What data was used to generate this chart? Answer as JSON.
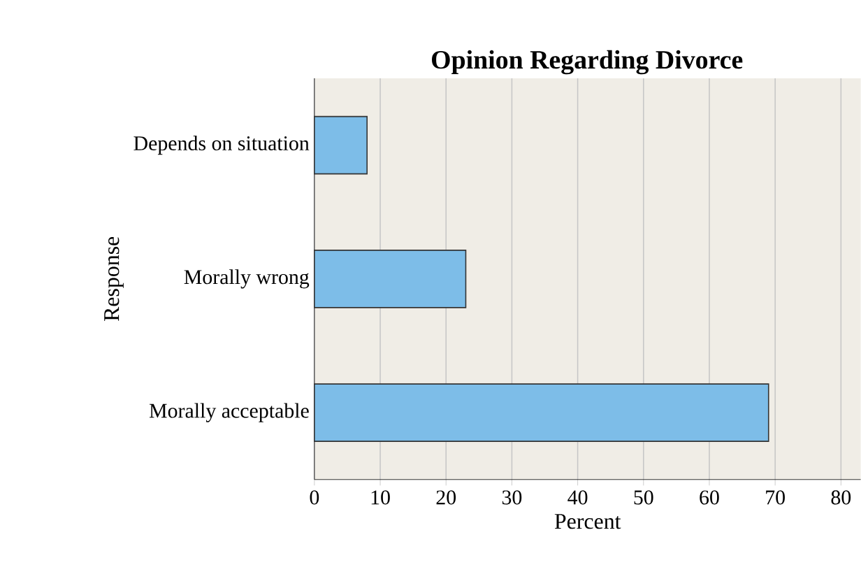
{
  "chart_data": {
    "type": "bar",
    "orientation": "horizontal",
    "title": "Opinion Regarding Divorce",
    "xlabel": "Percent",
    "ylabel": "Response",
    "categories": [
      "Depends on situation",
      "Morally wrong",
      "Morally acceptable"
    ],
    "values": [
      8,
      23,
      69
    ],
    "color": "#7dbde8",
    "xlim": [
      0,
      83
    ],
    "xticks": [
      0,
      10,
      20,
      30,
      40,
      50,
      60,
      70,
      80
    ],
    "grid": "x"
  }
}
